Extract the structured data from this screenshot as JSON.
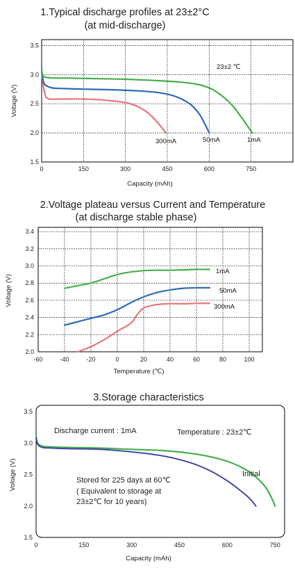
{
  "chart_data": [
    {
      "type": "line",
      "title": "1.Typical discharge profiles at 23±2°C",
      "subtitle": "(at mid-discharge)",
      "xlabel": "Capacity (mAh)",
      "ylabel": "Voltage (V)",
      "xlim": [
        0,
        900
      ],
      "ylim": [
        1.5,
        3.6
      ],
      "xticks": [
        "0",
        "150",
        "300",
        "450",
        "600",
        "750"
      ],
      "yticks": [
        "1.5",
        "2.0",
        "2.5",
        "3.0",
        "3.5"
      ],
      "grid": true,
      "annotation": "23±2 ℃",
      "series": [
        {
          "name": "300mA",
          "color": "#e8767a",
          "x": [
            0,
            3,
            8,
            15,
            30,
            60,
            100,
            150,
            200,
            250,
            300,
            340,
            370,
            395,
            415,
            430,
            445
          ],
          "y": [
            3.05,
            2.9,
            2.75,
            2.62,
            2.58,
            2.58,
            2.58,
            2.58,
            2.57,
            2.55,
            2.52,
            2.46,
            2.38,
            2.28,
            2.18,
            2.09,
            2.0
          ]
        },
        {
          "name": "50mA",
          "color": "#2b6cb5",
          "x": [
            0,
            3,
            10,
            20,
            40,
            80,
            150,
            250,
            350,
            420,
            470,
            510,
            540,
            565,
            585,
            600
          ],
          "y": [
            3.1,
            2.95,
            2.84,
            2.8,
            2.77,
            2.76,
            2.75,
            2.74,
            2.72,
            2.69,
            2.64,
            2.56,
            2.46,
            2.32,
            2.15,
            2.0
          ]
        },
        {
          "name": "1mA",
          "color": "#45b04a",
          "x": [
            0,
            5,
            20,
            50,
            100,
            200,
            300,
            400,
            500,
            560,
            610,
            650,
            685,
            715,
            740,
            755
          ],
          "y": [
            3.08,
            2.98,
            2.95,
            2.94,
            2.94,
            2.93,
            2.92,
            2.9,
            2.87,
            2.83,
            2.75,
            2.62,
            2.46,
            2.27,
            2.1,
            2.0
          ]
        }
      ]
    },
    {
      "type": "line",
      "title": "2.Voltage plateau versus Current and Temperature",
      "subtitle": "(at discharge stable phase)",
      "xlabel": "Temperature (℃)",
      "ylabel": "Voltage (V)",
      "xlim": [
        -60,
        110
      ],
      "ylim": [
        2.0,
        3.45
      ],
      "xticks": [
        "-60",
        "-40",
        "-20",
        "0",
        "20",
        "40",
        "60",
        "80",
        "100"
      ],
      "yticks": [
        "2.0",
        "2.2",
        "2.4",
        "2.6",
        "2.8",
        "3.0",
        "3.2",
        "3.4"
      ],
      "grid": true,
      "series": [
        {
          "name": "1mA",
          "color": "#45b04a",
          "x": [
            -40,
            -30,
            -20,
            -10,
            0,
            10,
            20,
            30,
            40,
            50,
            60,
            70
          ],
          "y": [
            2.74,
            2.77,
            2.8,
            2.85,
            2.9,
            2.93,
            2.945,
            2.95,
            2.95,
            2.955,
            2.96,
            2.96
          ]
        },
        {
          "name": "50mA",
          "color": "#2b6cb5",
          "x": [
            -40,
            -30,
            -20,
            -10,
            0,
            10,
            20,
            30,
            40,
            50,
            60,
            70
          ],
          "y": [
            2.31,
            2.35,
            2.39,
            2.43,
            2.49,
            2.57,
            2.64,
            2.69,
            2.72,
            2.74,
            2.745,
            2.745
          ]
        },
        {
          "name": "300mA",
          "color": "#e8767a",
          "x": [
            -30,
            -20,
            -10,
            0,
            10,
            15,
            20,
            30,
            40,
            50,
            60,
            70
          ],
          "y": [
            2.0,
            2.06,
            2.14,
            2.24,
            2.33,
            2.43,
            2.51,
            2.55,
            2.56,
            2.56,
            2.565,
            2.565
          ]
        }
      ]
    },
    {
      "type": "line",
      "title": "3.Storage characteristics",
      "xlabel": "Capacity (mAh)",
      "ylabel": "Voltage (V)",
      "xlim": [
        0,
        780
      ],
      "ylim": [
        1.5,
        3.6
      ],
      "xticks": [
        "0",
        "150",
        "300",
        "450",
        "600",
        "750"
      ],
      "yticks": [
        "1.5",
        "2.0",
        "2.5",
        "3.0",
        "3.5"
      ],
      "grid": false,
      "annotations": {
        "current": "Discharge current : 1mA",
        "temperature": "Temperature : 23±2℃",
        "stored_line1": "Stored for 225 days at 60℃",
        "stored_line2": "( Equivalent to storage at",
        "stored_line3": "23±2℃ for 10 years)"
      },
      "series": [
        {
          "name": "Initial",
          "color": "#45b04a",
          "x": [
            0,
            5,
            20,
            50,
            100,
            200,
            300,
            400,
            480,
            540,
            600,
            650,
            690,
            720,
            740,
            750
          ],
          "y": [
            3.1,
            3.0,
            2.95,
            2.94,
            2.93,
            2.92,
            2.9,
            2.88,
            2.84,
            2.79,
            2.71,
            2.6,
            2.46,
            2.3,
            2.12,
            2.0
          ]
        },
        {
          "name": "",
          "color": "#3b3fa8",
          "x": [
            0,
            5,
            20,
            50,
            100,
            200,
            300,
            380,
            440,
            500,
            550,
            600,
            640,
            670,
            690
          ],
          "y": [
            3.08,
            2.98,
            2.93,
            2.92,
            2.91,
            2.9,
            2.86,
            2.81,
            2.75,
            2.66,
            2.55,
            2.4,
            2.25,
            2.12,
            2.0
          ]
        }
      ]
    }
  ]
}
